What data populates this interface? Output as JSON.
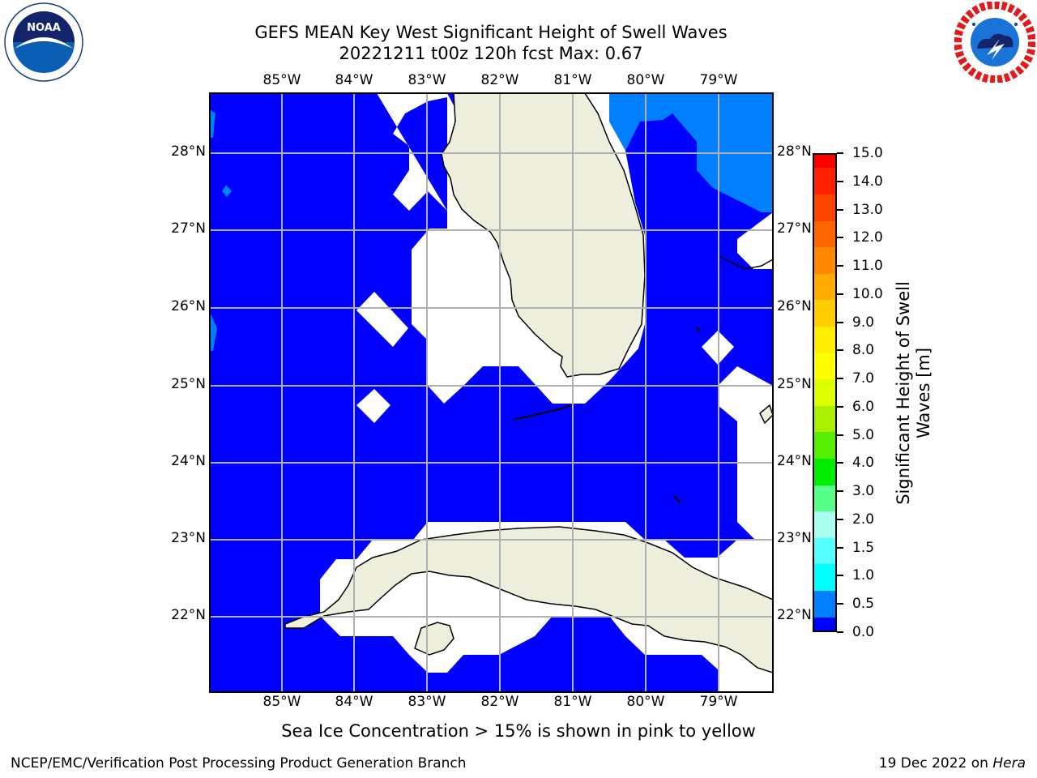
{
  "title_line1": "GEFS MEAN Key West Significant Height of Swell Waves",
  "title_line2": "20221211 t00z 120h fcst   Max: 0.67",
  "logos": {
    "left": "noaa-logo",
    "left_text": "NOAA",
    "right": "nws-logo"
  },
  "map": {
    "lon_ticks": [
      "85°W",
      "84°W",
      "83°W",
      "82°W",
      "81°W",
      "80°W",
      "79°W"
    ],
    "lat_ticks": [
      "28°N",
      "27°N",
      "26°N",
      "25°N",
      "24°N",
      "23°N",
      "22°N"
    ],
    "extent": {
      "lon_min": -86.0,
      "lon_max": -78.3,
      "lat_min": 21.0,
      "lat_max": 28.8
    },
    "colors": {
      "ocean_main": "#0000fe",
      "ocean_light": "#0080ff",
      "land": "#eeeedd",
      "grid": "#b0b0b0"
    }
  },
  "colorbar": {
    "title_line1": "Significant Height of Swell",
    "title_line2": "Waves [m]",
    "labels": [
      "15.0",
      "14.0",
      "13.0",
      "12.0",
      "11.0",
      "10.0",
      "9.0",
      "8.0",
      "7.0",
      "6.0",
      "5.0",
      "4.0",
      "3.0",
      "2.0",
      "1.5",
      "1.0",
      "0.5",
      "0.0"
    ],
    "colors_top_to_bottom": [
      "#ff0000",
      "#ff2200",
      "#ff4400",
      "#ff6600",
      "#ff8800",
      "#ffaa00",
      "#ffcc00",
      "#ffee00",
      "#ffff00",
      "#ddff00",
      "#aaee00",
      "#55ee00",
      "#00ee00",
      "#55ff88",
      "#aaffee",
      "#55ffff",
      "#00ffff",
      "#0080ff",
      "#0000ff"
    ]
  },
  "note": "Sea Ice Concentration > 15% is shown in pink to yellow",
  "footer": {
    "left": "NCEP/EMC/Verification Post Processing Product Generation Branch",
    "date": "19 Dec 2022 on",
    "host": "Hera"
  }
}
